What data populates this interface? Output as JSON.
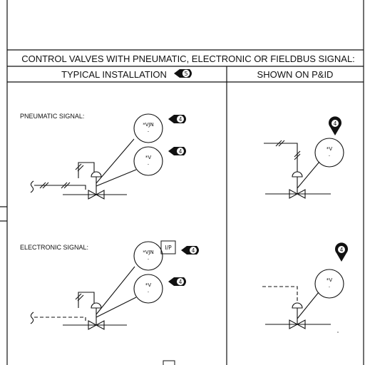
{
  "header": {
    "title": "CONTROL VALVES WITH PNEUMATIC, ELECTRONIC OR FIELDBUS SIGNAL:",
    "col_left": "TYPICAL INSTALLATION",
    "col_left_note": "5",
    "col_right": "SHOWN ON P&ID"
  },
  "pneumatic": {
    "label": "PNEUMATIC SIGNAL:",
    "bubble_top": "*VJN",
    "bubble_top_sub": "-",
    "note_top": "4",
    "bubble_bottom": "*V",
    "bubble_bottom_sub": "-",
    "note_bottom": "4",
    "pid_bubble": "*V",
    "pid_bubble_sub": "-",
    "pid_note": "4"
  },
  "electronic": {
    "label": "ELECTRONIC SIGNAL:",
    "bubble_top": "*VJN",
    "bubble_top_sub": "-",
    "converter": "I/P",
    "note_top": "4",
    "bubble_bottom": "*V",
    "bubble_bottom_sub": "-",
    "note_bottom": "4",
    "pid_bubble": "*V",
    "pid_bubble_sub": "-",
    "pid_note": "4"
  }
}
